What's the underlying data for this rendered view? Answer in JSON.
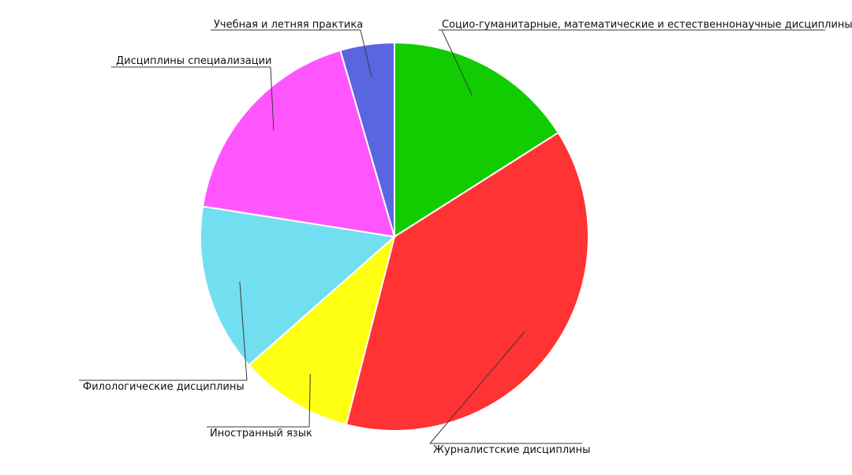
{
  "chart_data": {
    "type": "pie",
    "title": "",
    "start_angle_deg": 0,
    "direction": "clockwise",
    "slices": [
      {
        "label": "Социо-гуманитарные, математические и естественнонаучные дисциплины",
        "value": 16.0,
        "color": "#11cc00"
      },
      {
        "label": "Журналистские дисциплины",
        "value": 38.0,
        "color": "#ff3333"
      },
      {
        "label": "Иностранный язык",
        "value": 9.5,
        "color": "#ffff11"
      },
      {
        "label": "Филологические дисциплины",
        "value": 14.0,
        "color": "#72dff0"
      },
      {
        "label": "Дисциплины специализации",
        "value": 18.0,
        "color": "#ff55ff"
      },
      {
        "label": "Учебная и летняя практика",
        "value": 4.5,
        "color": "#5a66e0"
      }
    ]
  }
}
